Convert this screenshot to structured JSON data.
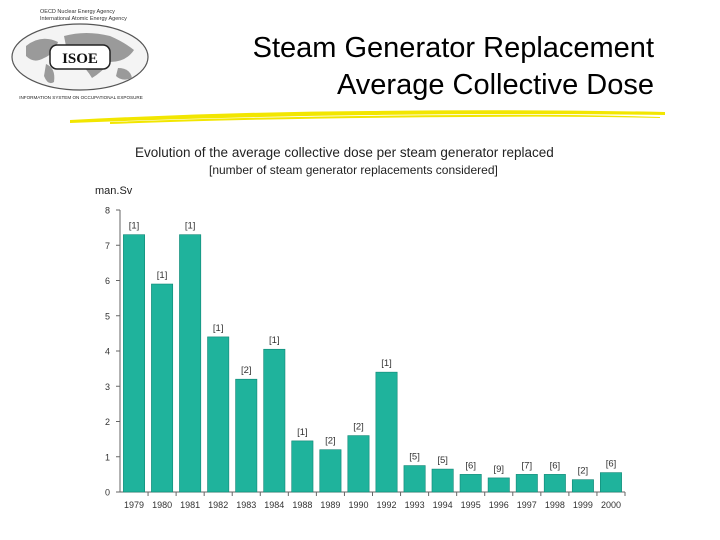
{
  "slide": {
    "title_line1": "Steam Generator Replacement",
    "title_line2": "Average Collective Dose",
    "accent_color": "#f2e600",
    "bar_color": "#1fb39c",
    "bar_edge_color": "#0f8674"
  },
  "logo": {
    "line1": "OECD Nuclear Energy Agency",
    "line2": "International Atomic Energy Agency",
    "acronym": "ISOE",
    "footer": "INFORMATION SYSTEM ON OCCUPATIONAL EXPOSURE"
  },
  "chart_data": {
    "type": "bar",
    "title": "Evolution of the average collective dose per steam generator replaced",
    "subtitle": "[number of steam generator replacements considered]",
    "ylabel": "man.Sv",
    "xlabel": "",
    "ylim": [
      0,
      8
    ],
    "yticks": [
      0,
      1,
      2,
      3,
      4,
      5,
      6,
      7,
      8
    ],
    "grid": false,
    "categories": [
      "1979",
      "1980",
      "1981",
      "1982",
      "1983",
      "1984",
      "1988",
      "1989",
      "1990",
      "1992",
      "1993",
      "1994",
      "1995",
      "1996",
      "1997",
      "1998",
      "1999",
      "2000"
    ],
    "values": [
      7.3,
      5.9,
      7.3,
      4.4,
      3.2,
      4.05,
      1.45,
      1.2,
      1.6,
      3.4,
      0.75,
      0.65,
      0.5,
      0.4,
      0.5,
      0.5,
      0.35,
      0.55
    ],
    "bar_labels": [
      "[1]",
      "[1]",
      "[1]",
      "[1]",
      "[2]",
      "[1]",
      "[1]",
      "[2]",
      "[2]",
      "[1]",
      "[5]",
      "[5]",
      "[6]",
      "[9]",
      "[7]",
      "[6]",
      "[2]",
      "[6]"
    ]
  }
}
